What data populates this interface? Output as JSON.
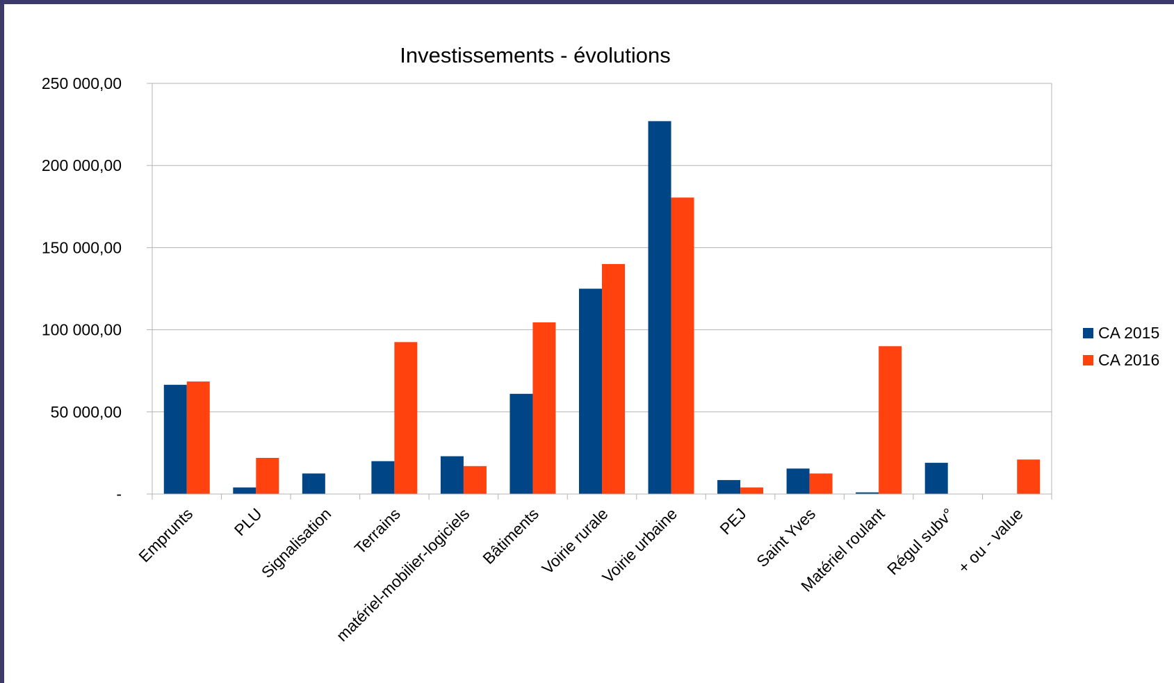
{
  "chart_data": {
    "type": "bar",
    "title": "Investissements - évolutions",
    "xlabel": "",
    "ylabel": "",
    "ylim": [
      0,
      250000
    ],
    "yticks": [
      0,
      50000,
      100000,
      150000,
      200000,
      250000
    ],
    "ytick_labels": [
      "-",
      "50 000,00",
      "100 000,00",
      "150 000,00",
      "200 000,00",
      "250 000,00"
    ],
    "grid": true,
    "legend_position": "right",
    "categories": [
      "Emprunts",
      "PLU",
      "Signalisation",
      "Terrains",
      "matériel-mobilier-logiciels",
      "Bâtiments",
      "Voirie rurale",
      "Voirie urbaine",
      "PEJ",
      "Saint Yves",
      "Matériel roulant",
      "Régul subv°",
      "+ ou - value"
    ],
    "series": [
      {
        "name": "CA 2015",
        "color": "#004586",
        "values": [
          66500,
          4000,
          12500,
          20000,
          23000,
          61000,
          125000,
          227000,
          8500,
          15500,
          1000,
          19000,
          0
        ]
      },
      {
        "name": "CA 2016",
        "color": "#ff420e",
        "values": [
          68500,
          22000,
          0,
          92500,
          17000,
          104500,
          140000,
          180500,
          4000,
          12500,
          90000,
          0,
          21000
        ]
      }
    ]
  }
}
